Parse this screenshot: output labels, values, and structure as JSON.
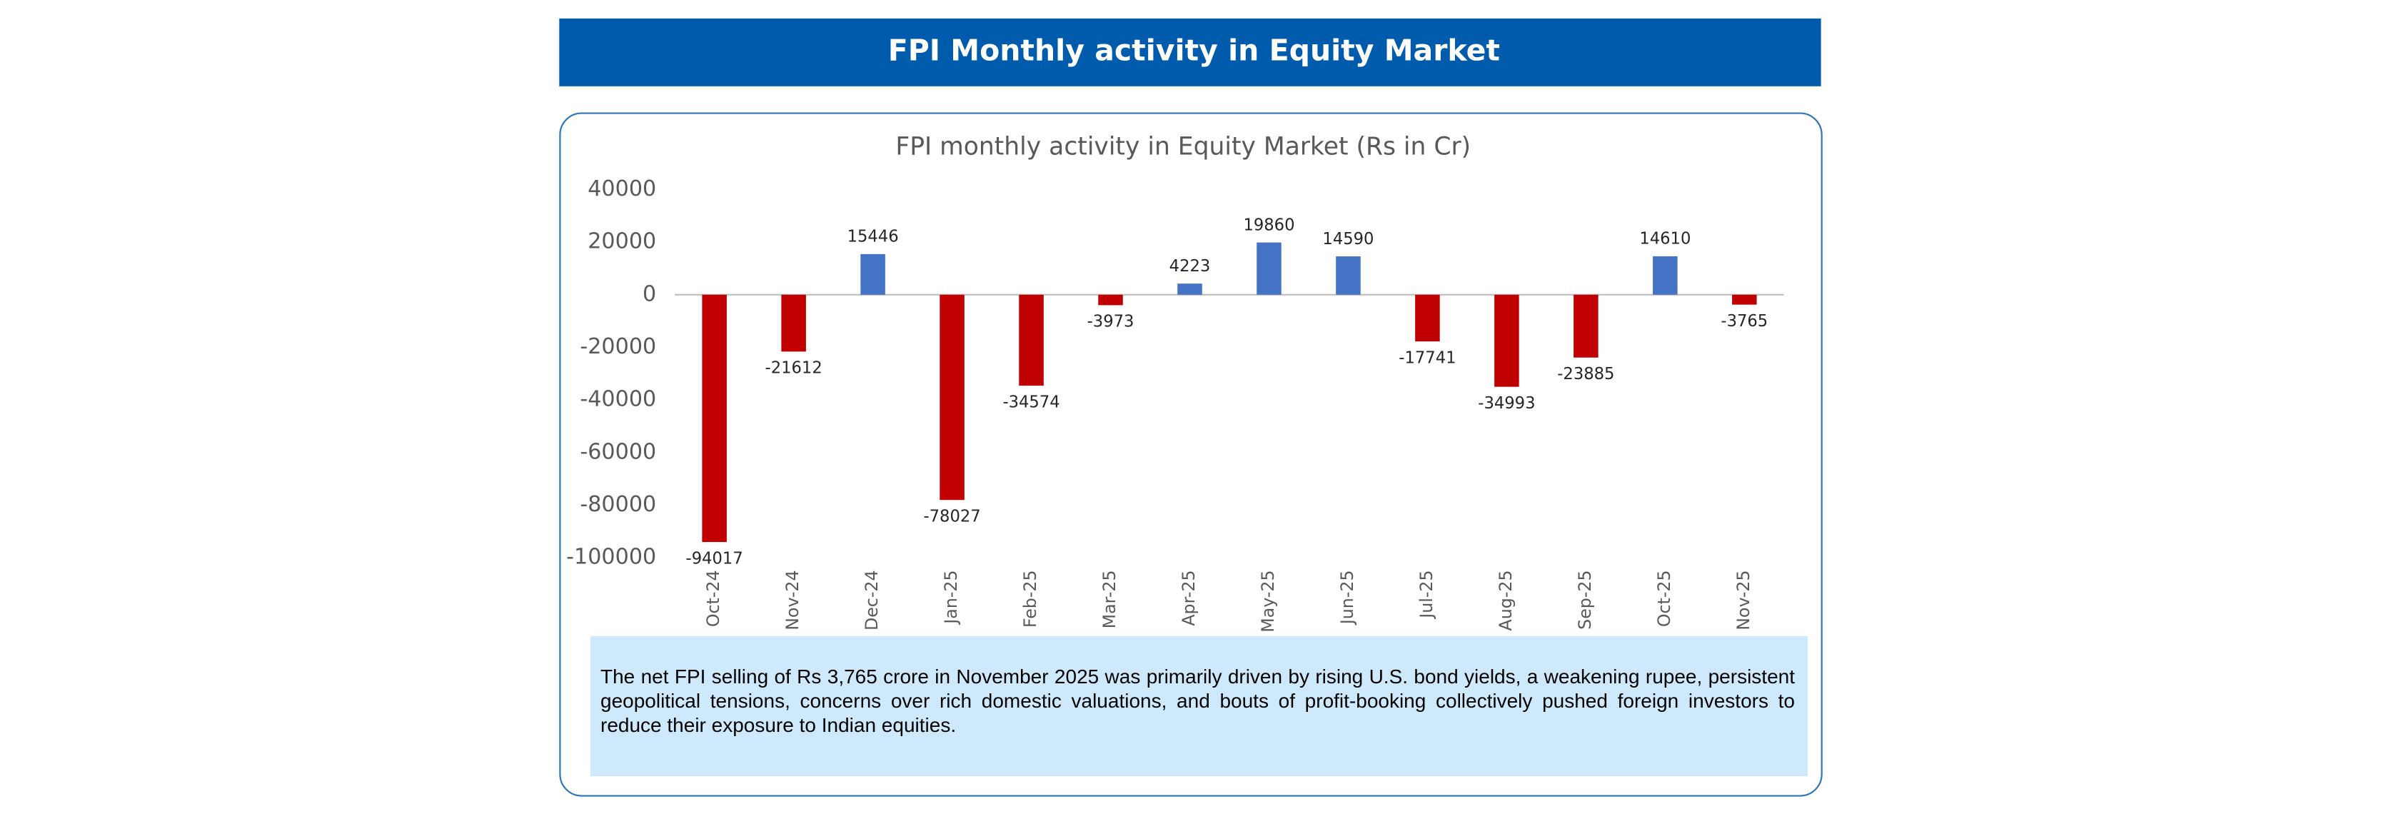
{
  "header": {
    "title": "FPI Monthly activity in Equity Market"
  },
  "chart_data": {
    "type": "bar",
    "title": "FPI monthly activity in Equity Market (Rs in Cr)",
    "categories": [
      "Oct-24",
      "Nov-24",
      "Dec-24",
      "Jan-25",
      "Feb-25",
      "Mar-25",
      "Apr-25",
      "May-25",
      "Jun-25",
      "Jul-25",
      "Aug-25",
      "Sep-25",
      "Oct-25",
      "Nov-25"
    ],
    "values": [
      -94017,
      -21612,
      15446,
      -78027,
      -34574,
      -3973,
      4223,
      19860,
      14590,
      -17741,
      -34993,
      -23885,
      14610,
      -3765
    ],
    "positive_color": "#4472c4",
    "negative_color": "#c00000",
    "ylim": [
      -100000,
      40000
    ],
    "yticks": [
      -100000,
      -80000,
      -60000,
      -40000,
      -20000,
      0,
      20000,
      40000
    ],
    "grid": false
  },
  "note": "The net FPI selling of Rs 3,765 crore in November 2025 was primarily driven by rising U.S. bond yields, a weakening rupee, persistent geopolitical tensions, concerns over rich domestic valuations, and bouts of profit-booking collectively pushed foreign investors to reduce their exposure to Indian equities."
}
